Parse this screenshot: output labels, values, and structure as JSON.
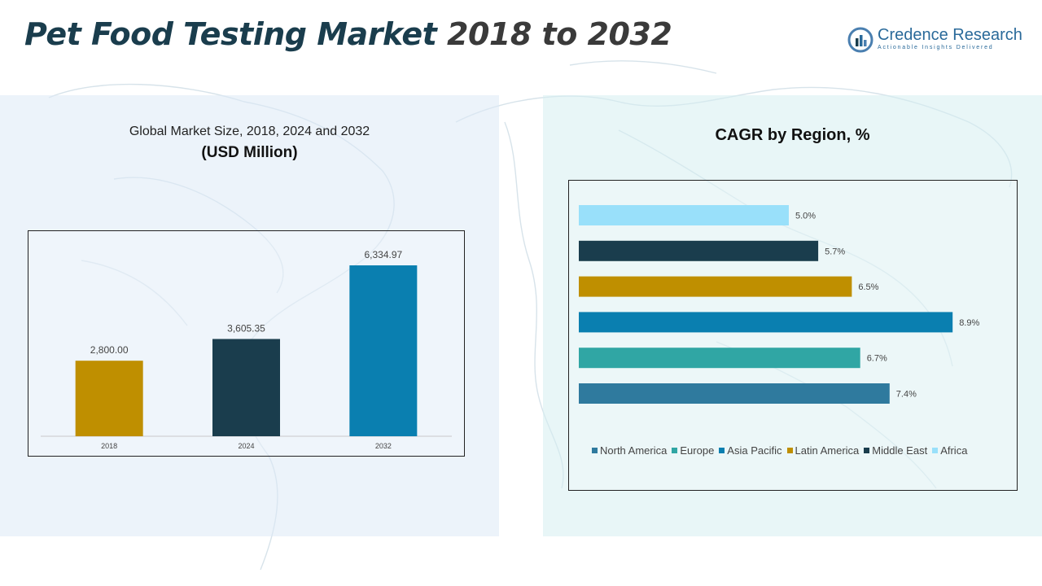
{
  "header": {
    "title_part1": "Pet Food Testing Market",
    "title_part2": "2018 to 2032"
  },
  "logo": {
    "name": "Credence Research",
    "tagline": "Actionable Insights Delivered"
  },
  "left_panel": {
    "subtitle": "Global Market Size, 2018, 2024 and 2032",
    "unit_label": "(USD Million)"
  },
  "right_panel": {
    "title": "CAGR by Region, %"
  },
  "chart_data": [
    {
      "type": "bar",
      "categories": [
        "2018",
        "2024",
        "2032"
      ],
      "values": [
        2800.0,
        3605.35,
        6334.97
      ],
      "value_labels": [
        "2,800.00",
        "3,605.35",
        "6,334.97"
      ],
      "colors": [
        "#bf8f00",
        "#1a3d4d",
        "#0a7fb0"
      ],
      "title": "Global Market Size, 2018, 2024 and 2032",
      "ylabel": "(USD Million)",
      "ylim": [
        0,
        7000
      ],
      "grid": false,
      "legend": "none"
    },
    {
      "type": "bar",
      "orientation": "horizontal",
      "series": [
        {
          "name": "North America",
          "value": 7.4,
          "label": "7.4%",
          "color": "#2f7a9e"
        },
        {
          "name": "Europe",
          "value": 6.7,
          "label": "6.7%",
          "color": "#30a6a4"
        },
        {
          "name": "Asia Pacific",
          "value": 8.9,
          "label": "8.9%",
          "color": "#0a7fb0"
        },
        {
          "name": "Latin America",
          "value": 6.5,
          "label": "6.5%",
          "color": "#bf8f00"
        },
        {
          "name": "Middle East",
          "value": 5.7,
          "label": "5.7%",
          "color": "#1a3d4d"
        },
        {
          "name": "Africa",
          "value": 5.0,
          "label": "5.0%",
          "color": "#99e0fa"
        }
      ],
      "title": "CAGR by Region, %",
      "xlim": [
        0,
        9.4
      ],
      "grid": false,
      "legend": "bottom"
    }
  ]
}
